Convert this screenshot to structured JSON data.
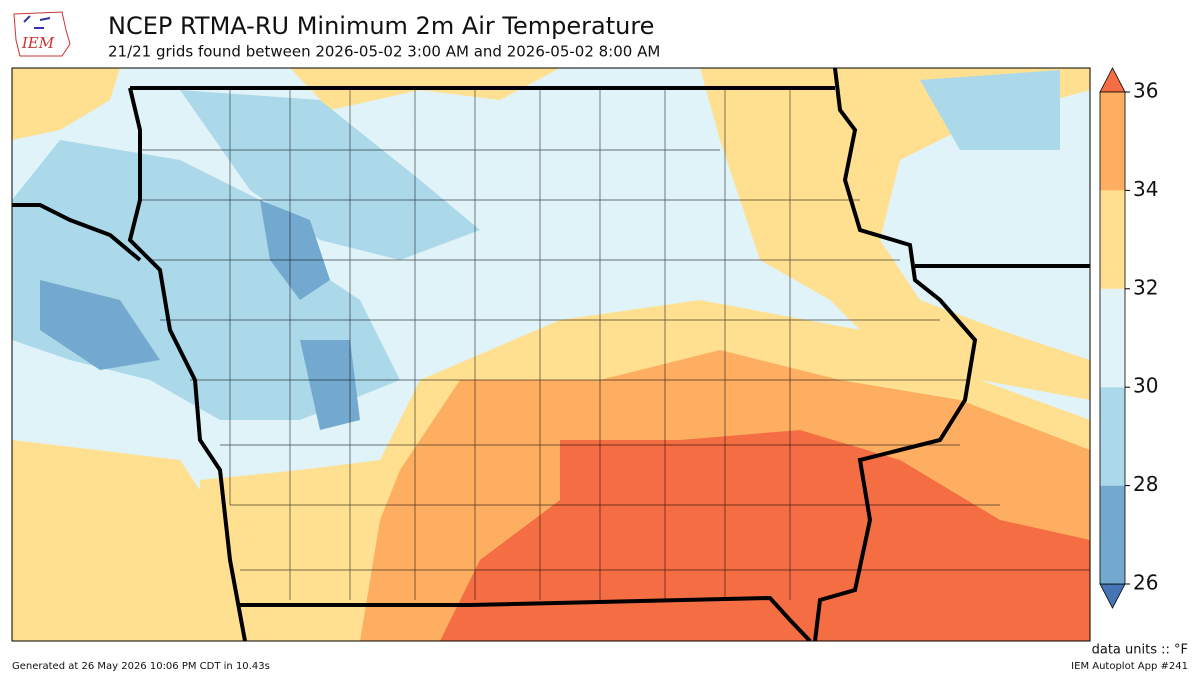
{
  "header": {
    "logo_text": "IEM",
    "title": "NCEP RTMA-RU Minimum 2m Air Temperature",
    "subtitle": "21/21 grids found between 2026-05-02 3:00 AM and 2026-05-02 8:00 AM"
  },
  "colorbar": {
    "ticks": [
      26,
      28,
      30,
      32,
      34,
      36
    ],
    "colors": [
      "#74a9cf",
      "#abd9e9",
      "#e0f3f8",
      "#fee090",
      "#fdae61"
    ],
    "under_color": "#4575b4",
    "over_color": "#f46d43",
    "units_label": "data units :: °F"
  },
  "footer": {
    "left": "Generated at 26 May 2026 10:06 PM CDT in 10.43s",
    "right": "IEM Autoplot App #241"
  }
}
